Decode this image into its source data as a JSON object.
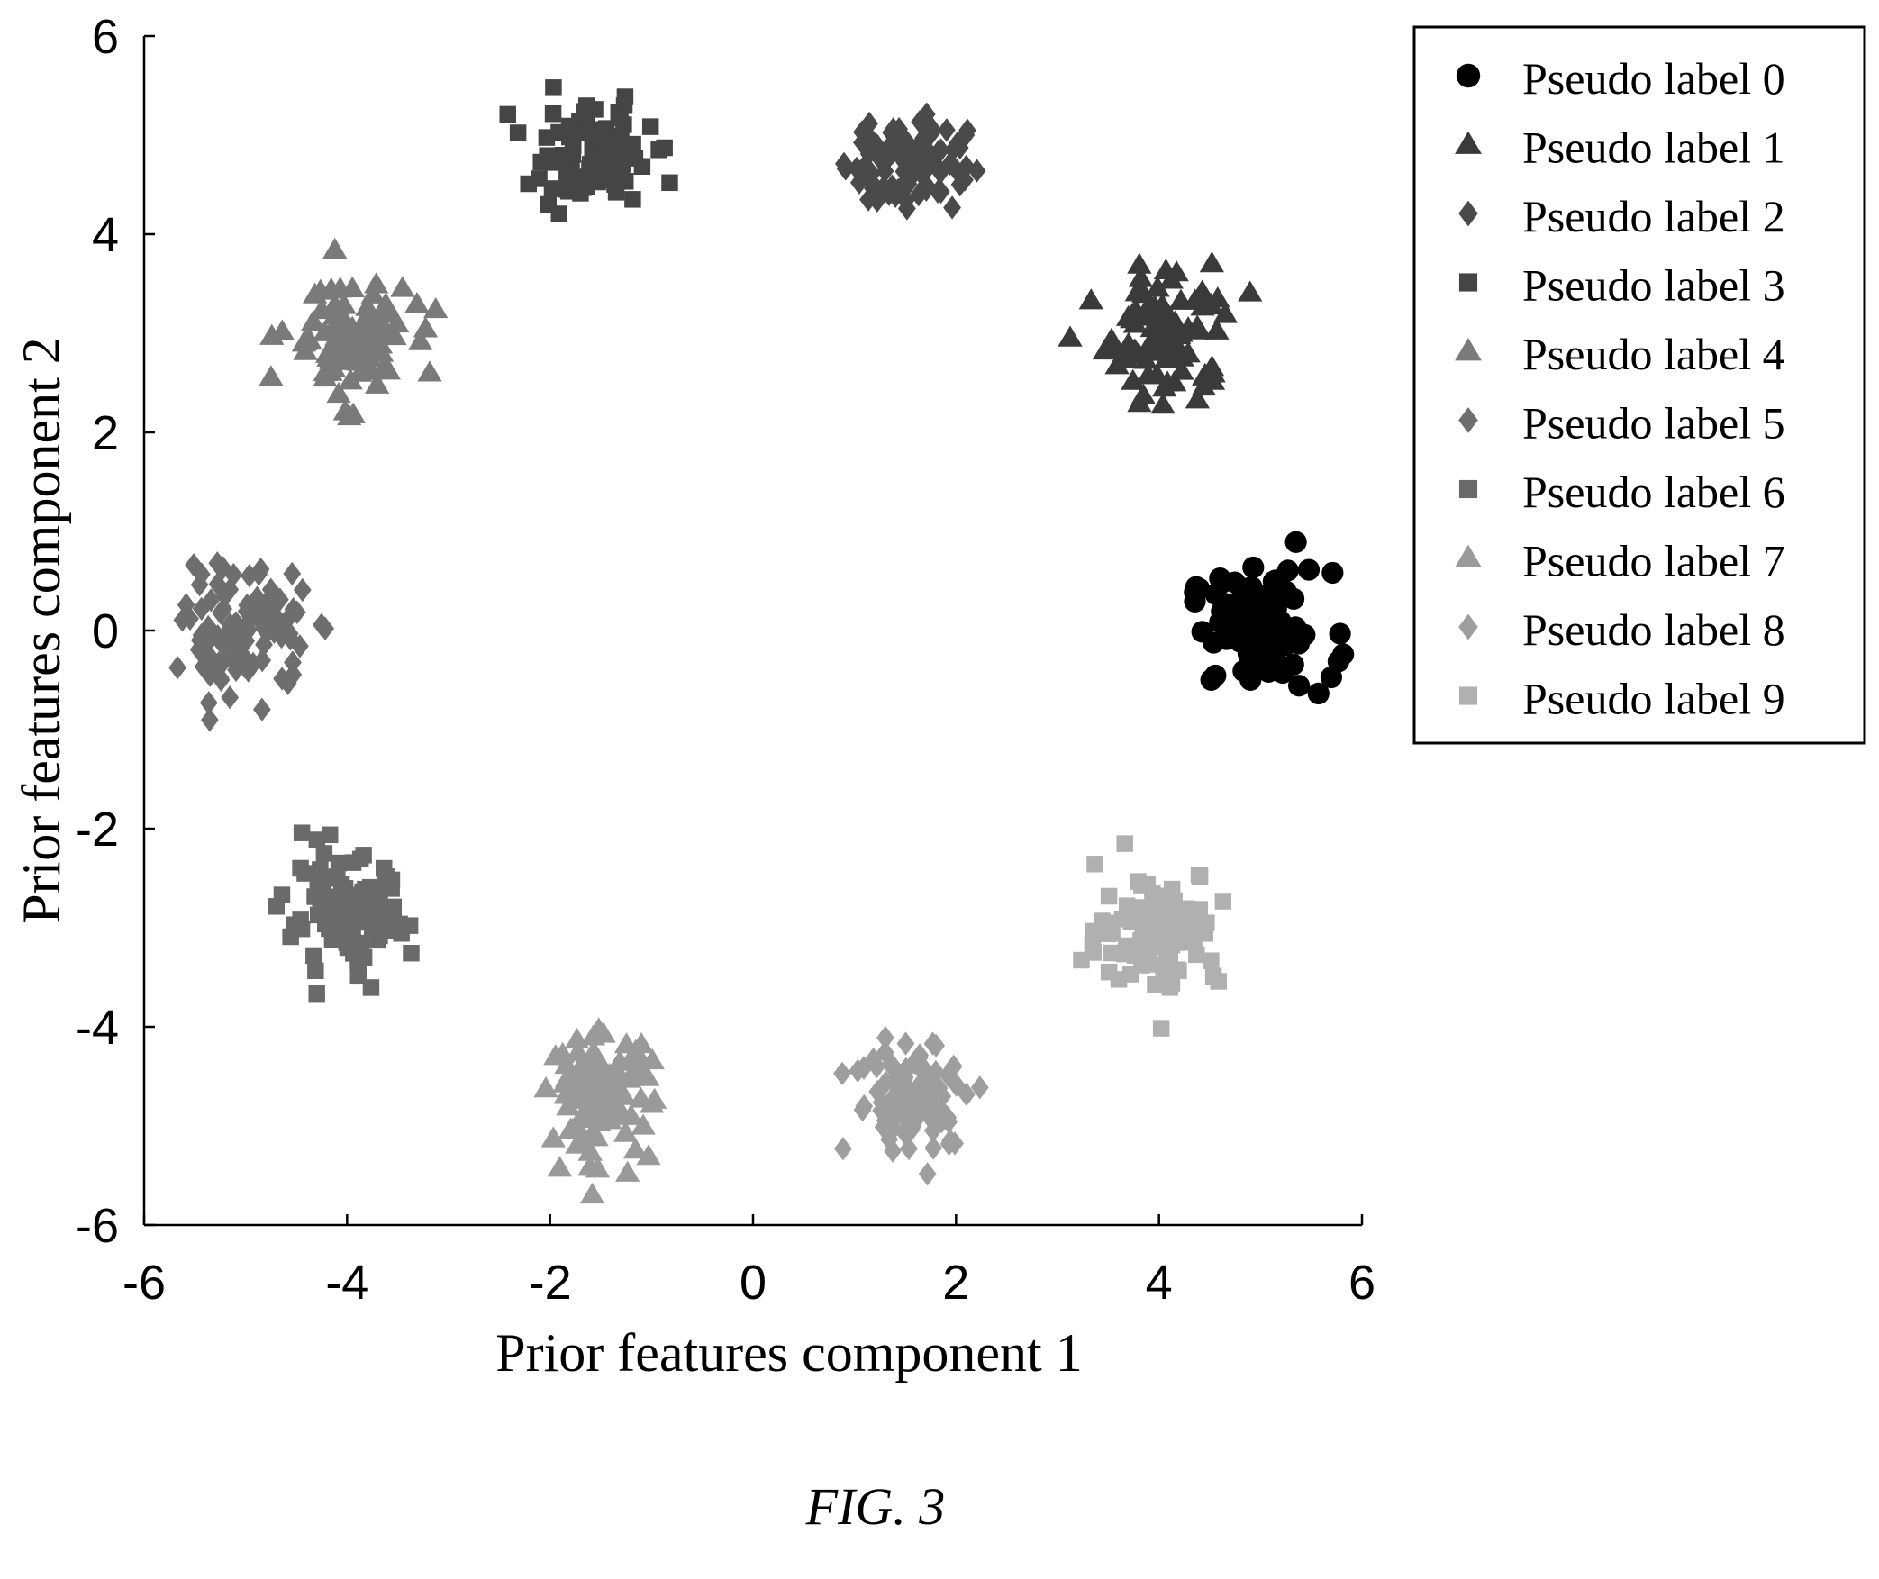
{
  "chart_data": {
    "type": "scatter",
    "xlabel": "Prior features component 1",
    "ylabel": "Prior features component 2",
    "xlim": [
      -6,
      6
    ],
    "ylim": [
      -6,
      6
    ],
    "xticks": [
      "-6",
      "-4",
      "-2",
      "0",
      "2",
      "4",
      "6"
    ],
    "yticks": [
      "-6",
      "-4",
      "-2",
      "0",
      "2",
      "4",
      "6"
    ],
    "grid": false,
    "legend_position": "outside-top-right",
    "series": [
      {
        "name": "Pseudo label 0",
        "marker": "circle",
        "color": "#000000",
        "center": [
          5.0,
          0.0
        ],
        "spread": [
          0.35,
          0.3
        ],
        "count": 90
      },
      {
        "name": "Pseudo label 1",
        "marker": "triangle",
        "color": "#3a3a3a",
        "center": [
          4.1,
          3.0
        ],
        "spread": [
          0.3,
          0.35
        ],
        "count": 90
      },
      {
        "name": "Pseudo label 2",
        "marker": "diamond",
        "color": "#4a4a4a",
        "center": [
          1.5,
          4.75
        ],
        "spread": [
          0.3,
          0.25
        ],
        "count": 90
      },
      {
        "name": "Pseudo label 3",
        "marker": "square",
        "color": "#454545",
        "center": [
          -1.6,
          4.8
        ],
        "spread": [
          0.3,
          0.25
        ],
        "count": 100
      },
      {
        "name": "Pseudo label 4",
        "marker": "triangle",
        "color": "#7a7a7a",
        "center": [
          -4.0,
          2.95
        ],
        "spread": [
          0.3,
          0.3
        ],
        "count": 100
      },
      {
        "name": "Pseudo label 5",
        "marker": "diamond",
        "color": "#6e6e6e",
        "center": [
          -5.0,
          0.0
        ],
        "spread": [
          0.3,
          0.3
        ],
        "count": 100
      },
      {
        "name": "Pseudo label 6",
        "marker": "square",
        "color": "#6a6a6a",
        "center": [
          -4.0,
          -2.9
        ],
        "spread": [
          0.3,
          0.3
        ],
        "count": 100
      },
      {
        "name": "Pseudo label 7",
        "marker": "triangle",
        "color": "#9a9a9a",
        "center": [
          -1.5,
          -4.7
        ],
        "spread": [
          0.25,
          0.3
        ],
        "count": 100
      },
      {
        "name": "Pseudo label 8",
        "marker": "diamond",
        "color": "#9e9e9e",
        "center": [
          1.6,
          -4.7
        ],
        "spread": [
          0.3,
          0.3
        ],
        "count": 100
      },
      {
        "name": "Pseudo label 9",
        "marker": "square",
        "color": "#b0b0b0",
        "center": [
          4.0,
          -3.0
        ],
        "spread": [
          0.3,
          0.3
        ],
        "count": 100
      }
    ]
  },
  "caption": "FIG. 3"
}
